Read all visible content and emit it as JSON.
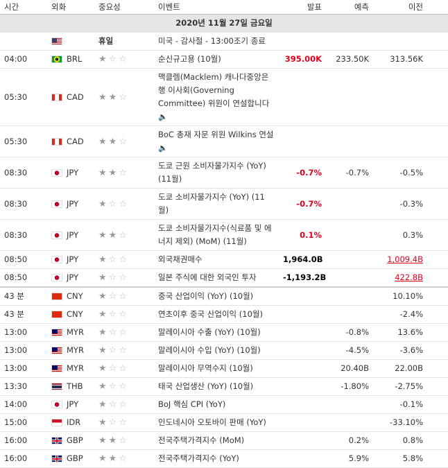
{
  "header": {
    "time": "시간",
    "currency": "외화",
    "importance": "중요성",
    "event": "이벤트",
    "actual": "발표",
    "forecast": "예측",
    "previous": "이전"
  },
  "date": "2020년 11월 27일 금요일",
  "rows": [
    {
      "flag": "US",
      "holiday": "휴일",
      "event": "미국 - 감사절 - 13:00조기 종료"
    },
    {
      "time": "04:00",
      "flag": "BR",
      "currency": "BRL",
      "importance": 1,
      "event": "순신규고용 (10월)",
      "actual": "395.00K",
      "actual_color": "#e0001b",
      "forecast": "233.50K",
      "previous": "313.56K"
    },
    {
      "time": "05:30",
      "flag": "CA",
      "currency": "CAD",
      "importance": 2,
      "event": "맥클렘(Macklem) 캐나다중앙은행 이사회(Governing Committee) 위원이 연설합니다",
      "audio": true
    },
    {
      "time": "05:30",
      "flag": "CA",
      "currency": "CAD",
      "importance": 2,
      "event": "BoC 총재 자문 위원 Wilkins 연설",
      "audio": true
    },
    {
      "time": "08:30",
      "flag": "JP",
      "currency": "JPY",
      "importance": 2,
      "event": "도쿄 근원 소비자물가지수 (YoY) (11월)",
      "actual": "-0.7%",
      "actual_color": "#e0001b",
      "forecast": "-0.7%",
      "previous": "-0.5%"
    },
    {
      "time": "08:30",
      "flag": "JP",
      "currency": "JPY",
      "importance": 1,
      "event": "도쿄 소비자물가지수 (YoY) (11월)",
      "actual": "-0.7%",
      "actual_color": "#e0001b",
      "previous": "-0.3%"
    },
    {
      "time": "08:30",
      "flag": "JP",
      "currency": "JPY",
      "importance": 2,
      "event": "도쿄 소비자물가지수(식료품 및 에너지 제외) (MoM) (11월)",
      "actual": "0.1%",
      "actual_color": "#e0001b",
      "previous": "0.3%"
    },
    {
      "time": "08:50",
      "flag": "JP",
      "currency": "JPY",
      "importance": 1,
      "event": "외국채권매수",
      "actual": "1,964.0B",
      "actual_color": "#000000",
      "previous": "1,009.4B",
      "previous_color": "#e0001b"
    },
    {
      "time": "08:50",
      "flag": "JP",
      "currency": "JPY",
      "importance": 1,
      "event": "일본 주식에 대한 외국인 투자",
      "actual": "-1,193.2B",
      "actual_color": "#000000",
      "previous": "422.8B",
      "previous_color": "#e0001b"
    },
    {
      "time": "43 분",
      "flag": "CN",
      "currency": "CNY",
      "importance": 1,
      "event": "중국 산업이익 (YoY) (10월)",
      "previous": "10.10%"
    },
    {
      "time": "43 분",
      "flag": "CN",
      "currency": "CNY",
      "importance": 1,
      "event": "연초이후 중국 산업이익 (10월)",
      "previous": "-2.4%"
    },
    {
      "time": "13:00",
      "flag": "MY",
      "currency": "MYR",
      "importance": 1,
      "event": "말레이시아 수출 (YoY) (10월)",
      "forecast": "-0.8%",
      "previous": "13.6%"
    },
    {
      "time": "13:00",
      "flag": "MY",
      "currency": "MYR",
      "importance": 1,
      "event": "말레이시아 수입 (YoY) (10월)",
      "forecast": "-4.5%",
      "previous": "-3.6%"
    },
    {
      "time": "13:00",
      "flag": "MY",
      "currency": "MYR",
      "importance": 1,
      "event": "말레이시아 무역수지 (10월)",
      "forecast": "20.40B",
      "previous": "22.00B"
    },
    {
      "time": "13:30",
      "flag": "TH",
      "currency": "THB",
      "importance": 1,
      "event": "태국 산업생산 (YoY) (10월)",
      "forecast": "-1.80%",
      "previous": "-2.75%"
    },
    {
      "time": "14:00",
      "flag": "JP",
      "currency": "JPY",
      "importance": 1,
      "event": "BoJ 핵심 CPI (YoY)",
      "previous": "-0.1%"
    },
    {
      "time": "15:00",
      "flag": "ID",
      "currency": "IDR",
      "importance": 1,
      "event": "인도네시아 오토바이 판매 (YoY)",
      "previous": "-33.10%"
    },
    {
      "time": "16:00",
      "flag": "GB",
      "currency": "GBP",
      "importance": 2,
      "event": "전국주택가격지수 (MoM)",
      "forecast": "0.2%",
      "previous": "0.8%"
    },
    {
      "time": "16:00",
      "flag": "GB",
      "currency": "GBP",
      "importance": 2,
      "event": "전국주택가격지수 (YoY)",
      "forecast": "5.9%",
      "previous": "5.8%"
    }
  ]
}
